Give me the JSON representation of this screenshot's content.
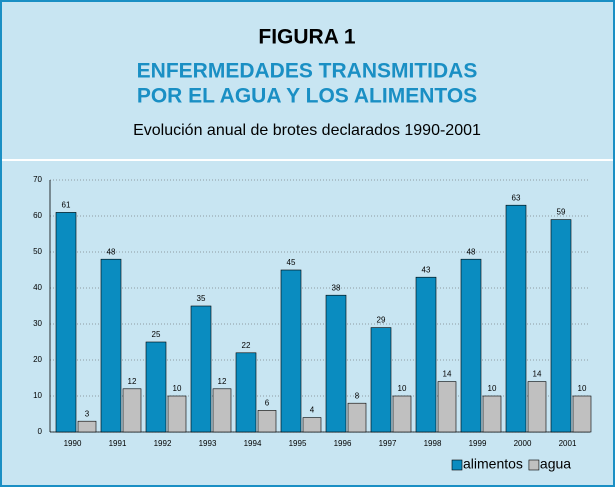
{
  "chart_data": {
    "type": "bar",
    "title": "FIGURA 1",
    "subtitle": [
      "ENFERMEDADES TRANSMITIDAS",
      "POR EL AGUA Y LOS ALIMENTOS"
    ],
    "description": "Evolución anual de brotes declarados 1990-2001",
    "categories": [
      "1990",
      "1991",
      "1992",
      "1993",
      "1994",
      "1995",
      "1996",
      "1997",
      "1998",
      "1999",
      "2000",
      "2001"
    ],
    "series": [
      {
        "name": "alimentos",
        "color": "#0a8cc0",
        "values": [
          61,
          48,
          25,
          35,
          22,
          45,
          38,
          29,
          43,
          48,
          63,
          59
        ]
      },
      {
        "name": "agua",
        "color": "#c0c0c0",
        "values": [
          3,
          12,
          10,
          12,
          6,
          4,
          8,
          10,
          14,
          10,
          14,
          10
        ]
      }
    ],
    "ylim": [
      0,
      70
    ],
    "yticks": [
      0,
      10,
      20,
      30,
      40,
      50,
      60,
      70
    ],
    "grid": true,
    "legend": "bottom-right"
  }
}
